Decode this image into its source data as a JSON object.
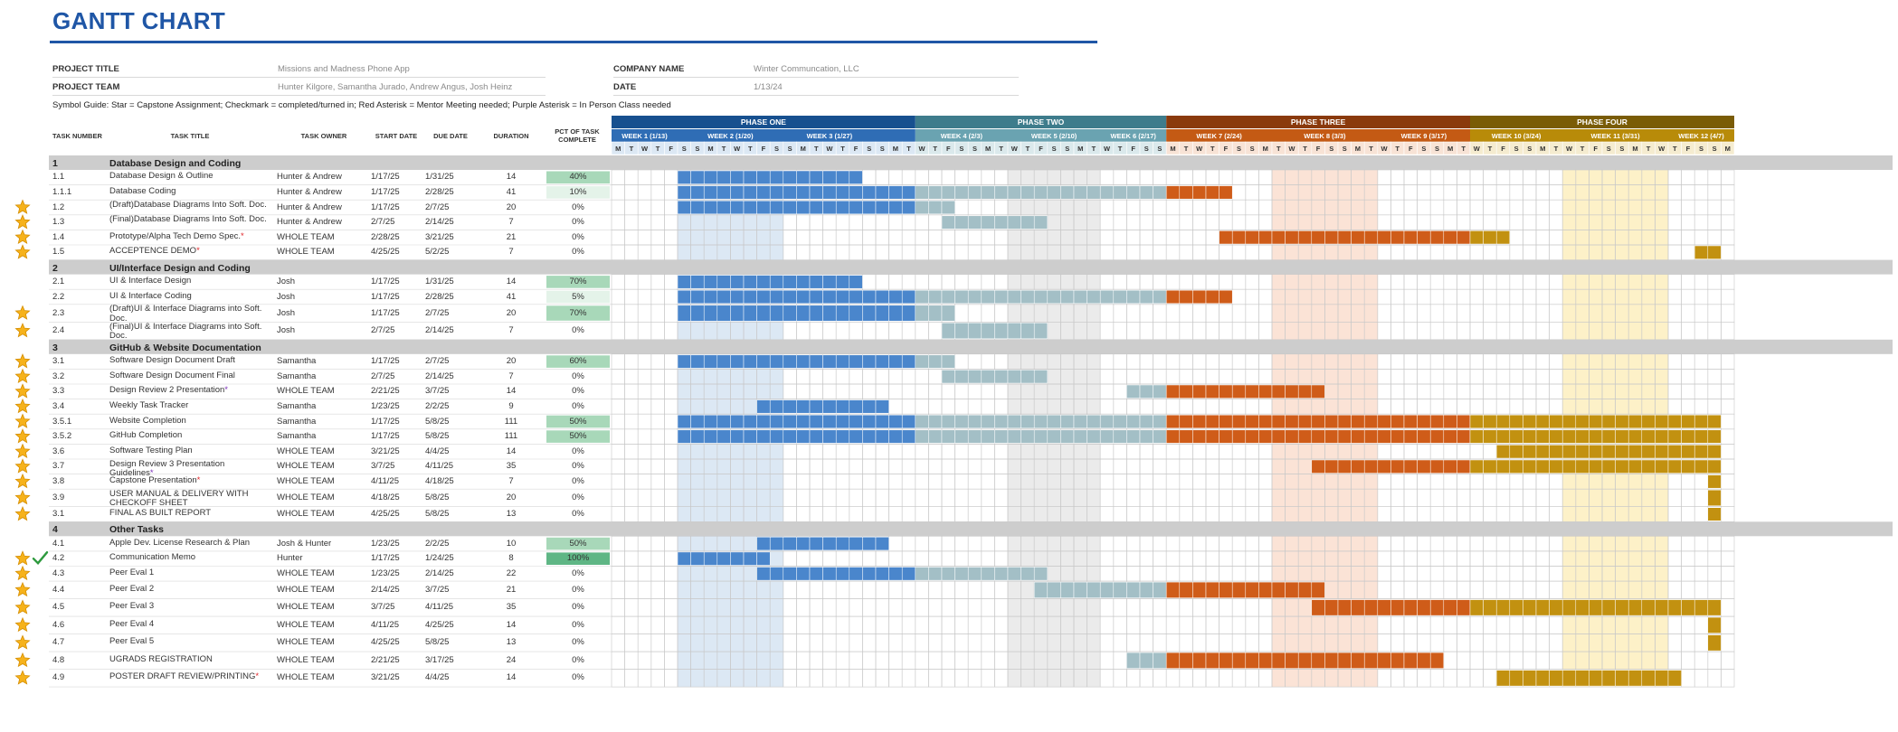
{
  "title": "GANTT CHART",
  "info": {
    "project_title_label": "PROJECT TITLE",
    "project_title": "Missions and Madness Phone App",
    "project_team_label": "PROJECT TEAM",
    "project_team": "Hunter Kilgore, Samantha Jurado, Andrew Angus, Josh Heinz",
    "company_name_label": "COMPANY NAME",
    "company_name": "Winter Communcation, LLC",
    "date_label": "DATE",
    "date": "1/13/24"
  },
  "symbol_guide": "Symbol Guide: Star = Capstone Assignment; Checkmark = completed/turned in; Red Asterisk = Mentor Meeting needed; Purple Asterisk = In Person Class needed",
  "columns": {
    "task_number": "TASK NUMBER",
    "task_title": "TASK TITLE",
    "task_owner": "TASK OWNER",
    "start_date": "START DATE",
    "due_date": "DUE DATE",
    "duration": "DURATION",
    "pct_complete": "PCT OF TASK COMPLETE"
  },
  "weekday_letters": [
    "M",
    "T",
    "W",
    "T",
    "F",
    "S",
    "S"
  ],
  "phases": [
    {
      "name": "PHASE ONE",
      "color": "#17508f",
      "week_color": "#2f6db5",
      "bar_color": "#4a86cc",
      "weeks": [
        "WEEK 1 (1/13)",
        "WEEK 2 (1/20)",
        "WEEK 3 (1/27)"
      ]
    },
    {
      "name": "PHASE TWO",
      "color": "#3e7c8c",
      "week_color": "#6aa3b1",
      "bar_color": "#a3bfc6",
      "weeks": [
        "WEEK 4 (2/3)",
        "WEEK 5 (2/10)",
        "WEEK 6 (2/17)"
      ]
    },
    {
      "name": "PHASE THREE",
      "color": "#8a3a0c",
      "week_color": "#c45a14",
      "bar_color": "#cf5c19",
      "weeks": [
        "WEEK 7 (2/24)",
        "WEEK 8 (3/3)",
        "WEEK 9 (3/17)"
      ]
    },
    {
      "name": "PHASE FOUR",
      "color": "#7a5c06",
      "week_color": "#b88b09",
      "bar_color": "#c29110",
      "weeks": [
        "WEEK 10 (3/24)",
        "WEEK 11 (3/31)",
        "WEEK 12 (4/7)"
      ]
    }
  ],
  "rows": [
    {
      "type": "section",
      "num": "1",
      "title": "Database Design and Coding"
    },
    {
      "type": "task",
      "num": "1.1",
      "title": "Database Design & Outline",
      "owner": "Hunter & Andrew",
      "start": "1/17/25",
      "due": "1/31/25",
      "duration": "14",
      "pct": "40%",
      "pct_value": 40,
      "star": false,
      "check": false,
      "asterisk": "",
      "bar_start_day": 5,
      "bar_end_day": 19
    },
    {
      "type": "task",
      "num": "1.1.1",
      "title": "Database Coding",
      "owner": "Hunter & Andrew",
      "start": "1/17/25",
      "due": "2/28/25",
      "duration": "41",
      "pct": "10%",
      "pct_value": 10,
      "star": false,
      "check": false,
      "asterisk": "",
      "bar_start_day": 5,
      "bar_end_day": 47
    },
    {
      "type": "task",
      "num": "1.2",
      "title": "(Draft)Database Diagrams Into Soft. Doc.",
      "owner": "Hunter & Andrew",
      "start": "1/17/25",
      "due": "2/7/25",
      "duration": "20",
      "pct": "0%",
      "pct_value": 0,
      "star": true,
      "check": false,
      "asterisk": "",
      "bar_start_day": 5,
      "bar_end_day": 26
    },
    {
      "type": "task",
      "num": "1.3",
      "title": "(Final)Database Diagrams Into Soft. Doc.",
      "owner": "Hunter & Andrew",
      "start": "2/7/25",
      "due": "2/14/25",
      "duration": "7",
      "pct": "0%",
      "pct_value": 0,
      "star": true,
      "check": false,
      "asterisk": "",
      "bar_start_day": 25,
      "bar_end_day": 33
    },
    {
      "type": "task",
      "num": "1.4",
      "title": "Prototype/Alpha Tech Demo Spec.",
      "owner": "WHOLE TEAM",
      "start": "2/28/25",
      "due": "3/21/25",
      "duration": "21",
      "pct": "0%",
      "pct_value": 0,
      "star": true,
      "check": false,
      "asterisk": "red",
      "bar_start_day": 46,
      "bar_end_day": 68
    },
    {
      "type": "task",
      "num": "1.5",
      "title": "ACCEPTENCE DEMO",
      "owner": "WHOLE TEAM",
      "start": "4/25/25",
      "due": "5/2/25",
      "duration": "7",
      "pct": "0%",
      "pct_value": 0,
      "star": true,
      "check": false,
      "asterisk": "red",
      "bar_start_day": 82,
      "bar_end_day": 84
    },
    {
      "type": "section",
      "num": "2",
      "title": "UI/Interface Design and Coding"
    },
    {
      "type": "task",
      "num": "2.1",
      "title": "UI & Interface Design",
      "owner": "Josh",
      "start": "1/17/25",
      "due": "1/31/25",
      "duration": "14",
      "pct": "70%",
      "pct_value": 70,
      "star": false,
      "check": false,
      "asterisk": "",
      "bar_start_day": 5,
      "bar_end_day": 19
    },
    {
      "type": "task",
      "num": "2.2",
      "title": "UI & Interface Coding",
      "owner": "Josh",
      "start": "1/17/25",
      "due": "2/28/25",
      "duration": "41",
      "pct": "5%",
      "pct_value": 5,
      "star": false,
      "check": false,
      "asterisk": "",
      "bar_start_day": 5,
      "bar_end_day": 47
    },
    {
      "type": "task",
      "num": "2.3",
      "title": "(Draft)UI & Interface Diagrams into Soft. Doc.",
      "owner": "Josh",
      "start": "1/17/25",
      "due": "2/7/25",
      "duration": "20",
      "pct": "70%",
      "pct_value": 70,
      "star": true,
      "check": false,
      "asterisk": "",
      "bar_start_day": 5,
      "bar_end_day": 26,
      "tall": true
    },
    {
      "type": "task",
      "num": "2.4",
      "title": "(Final)UI & Interface Diagrams into Soft. Doc.",
      "owner": "Josh",
      "start": "2/7/25",
      "due": "2/14/25",
      "duration": "7",
      "pct": "0%",
      "pct_value": 0,
      "star": true,
      "check": false,
      "asterisk": "",
      "bar_start_day": 25,
      "bar_end_day": 33,
      "tall": true
    },
    {
      "type": "section",
      "num": "3",
      "title": "GitHub & Website Documentation"
    },
    {
      "type": "task",
      "num": "3.1",
      "title": "Software Design Document Draft",
      "owner": "Samantha",
      "start": "1/17/25",
      "due": "2/7/25",
      "duration": "20",
      "pct": "60%",
      "pct_value": 60,
      "star": true,
      "check": false,
      "asterisk": "",
      "bar_start_day": 5,
      "bar_end_day": 26
    },
    {
      "type": "task",
      "num": "3.2",
      "title": "Software Design Document Final",
      "owner": "Samantha",
      "start": "2/7/25",
      "due": "2/14/25",
      "duration": "7",
      "pct": "0%",
      "pct_value": 0,
      "star": true,
      "check": false,
      "asterisk": "",
      "bar_start_day": 25,
      "bar_end_day": 33
    },
    {
      "type": "task",
      "num": "3.3",
      "title": "Design Review 2 Presentation",
      "owner": "WHOLE TEAM",
      "start": "2/21/25",
      "due": "3/7/25",
      "duration": "14",
      "pct": "0%",
      "pct_value": 0,
      "star": true,
      "check": false,
      "asterisk": "purple",
      "bar_start_day": 39,
      "bar_end_day": 54
    },
    {
      "type": "task",
      "num": "3.4",
      "title": "Weekly Task Tracker",
      "owner": "Samantha",
      "start": "1/23/25",
      "due": "2/2/25",
      "duration": "9",
      "pct": "0%",
      "pct_value": 0,
      "star": true,
      "check": false,
      "asterisk": "",
      "bar_start_day": 11,
      "bar_end_day": 21
    },
    {
      "type": "task",
      "num": "3.5.1",
      "title": "Website Completion",
      "owner": "Samantha",
      "start": "1/17/25",
      "due": "5/8/25",
      "duration": "111",
      "pct": "50%",
      "pct_value": 50,
      "star": true,
      "check": false,
      "asterisk": "",
      "bar_start_day": 5,
      "bar_end_day": 84
    },
    {
      "type": "task",
      "num": "3.5.2",
      "title": "GitHub Completion",
      "owner": "Samantha",
      "start": "1/17/25",
      "due": "5/8/25",
      "duration": "111",
      "pct": "50%",
      "pct_value": 50,
      "star": true,
      "check": false,
      "asterisk": "",
      "bar_start_day": 5,
      "bar_end_day": 84
    },
    {
      "type": "task",
      "num": "3.6",
      "title": "Software Testing Plan",
      "owner": "WHOLE TEAM",
      "start": "3/21/25",
      "due": "4/4/25",
      "duration": "14",
      "pct": "0%",
      "pct_value": 0,
      "star": true,
      "check": false,
      "asterisk": "",
      "bar_start_day": 67,
      "bar_end_day": 84
    },
    {
      "type": "task",
      "num": "3.7",
      "title": "Design Review 3 Presentation Guidelines",
      "owner": "WHOLE TEAM",
      "start": "3/7/25",
      "due": "4/11/25",
      "duration": "35",
      "pct": "0%",
      "pct_value": 0,
      "star": true,
      "check": false,
      "asterisk": "purple",
      "bar_start_day": 53,
      "bar_end_day": 84
    },
    {
      "type": "task",
      "num": "3.8",
      "title": "Capstone Presentation",
      "owner": "WHOLE TEAM",
      "start": "4/11/25",
      "due": "4/18/25",
      "duration": "7",
      "pct": "0%",
      "pct_value": 0,
      "star": true,
      "check": false,
      "asterisk": "red",
      "bar_start_day": 83,
      "bar_end_day": 84
    },
    {
      "type": "task",
      "num": "3.9",
      "title": "USER MANUAL & DELIVERY WITH CHECKOFF SHEET",
      "owner": "WHOLE TEAM",
      "start": "4/18/25",
      "due": "5/8/25",
      "duration": "20",
      "pct": "0%",
      "pct_value": 0,
      "star": true,
      "check": false,
      "asterisk": "",
      "bar_start_day": 83,
      "bar_end_day": 84,
      "tall": true
    },
    {
      "type": "task",
      "num": "3.1",
      "title": "FINAL AS BUILT REPORT",
      "owner": "WHOLE TEAM",
      "start": "4/25/25",
      "due": "5/8/25",
      "duration": "13",
      "pct": "0%",
      "pct_value": 0,
      "star": true,
      "check": false,
      "asterisk": "",
      "bar_start_day": 83,
      "bar_end_day": 84
    },
    {
      "type": "section",
      "num": "4",
      "title": "Other Tasks"
    },
    {
      "type": "task",
      "num": "4.1",
      "title": "Apple Dev. License Research & Plan",
      "owner": "Josh & Hunter",
      "start": "1/23/25",
      "due": "2/2/25",
      "duration": "10",
      "pct": "50%",
      "pct_value": 50,
      "star": false,
      "check": false,
      "asterisk": "",
      "bar_start_day": 11,
      "bar_end_day": 21
    },
    {
      "type": "task",
      "num": "4.2",
      "title": "Communication Memo",
      "owner": "Hunter",
      "start": "1/17/25",
      "due": "1/24/25",
      "duration": "8",
      "pct": "100%",
      "pct_value": 100,
      "star": true,
      "check": true,
      "asterisk": "",
      "bar_start_day": 5,
      "bar_end_day": 12
    },
    {
      "type": "task",
      "num": "4.3",
      "title": "Peer Eval 1",
      "owner": "WHOLE TEAM",
      "start": "1/23/25",
      "due": "2/14/25",
      "duration": "22",
      "pct": "0%",
      "pct_value": 0,
      "star": true,
      "check": false,
      "asterisk": "",
      "bar_start_day": 11,
      "bar_end_day": 33
    },
    {
      "type": "task",
      "num": "4.4",
      "title": "Peer Eval 2",
      "owner": "WHOLE TEAM",
      "start": "2/14/25",
      "due": "3/7/25",
      "duration": "21",
      "pct": "0%",
      "pct_value": 0,
      "star": true,
      "check": false,
      "asterisk": "",
      "bar_start_day": 32,
      "bar_end_day": 54,
      "tall": true
    },
    {
      "type": "task",
      "num": "4.5",
      "title": "Peer Eval 3",
      "owner": "WHOLE TEAM",
      "start": "3/7/25",
      "due": "4/11/25",
      "duration": "35",
      "pct": "0%",
      "pct_value": 0,
      "star": true,
      "check": false,
      "asterisk": "",
      "bar_start_day": 53,
      "bar_end_day": 84,
      "tall": true
    },
    {
      "type": "task",
      "num": "4.6",
      "title": "Peer Eval 4",
      "owner": "WHOLE TEAM",
      "start": "4/11/25",
      "due": "4/25/25",
      "duration": "14",
      "pct": "0%",
      "pct_value": 0,
      "star": true,
      "check": false,
      "asterisk": "",
      "bar_start_day": 83,
      "bar_end_day": 84,
      "tall": true
    },
    {
      "type": "task",
      "num": "4.7",
      "title": "Peer Eval 5",
      "owner": "WHOLE TEAM",
      "start": "4/25/25",
      "due": "5/8/25",
      "duration": "13",
      "pct": "0%",
      "pct_value": 0,
      "star": true,
      "check": false,
      "asterisk": "",
      "bar_start_day": 83,
      "bar_end_day": 84,
      "tall": true
    },
    {
      "type": "task",
      "num": "4.8",
      "title": "UGRADS REGISTRATION",
      "owner": "WHOLE TEAM",
      "start": "2/21/25",
      "due": "3/17/25",
      "duration": "24",
      "pct": "0%",
      "pct_value": 0,
      "star": true,
      "check": false,
      "asterisk": "",
      "bar_start_day": 39,
      "bar_end_day": 63,
      "tall": true
    },
    {
      "type": "task",
      "num": "4.9",
      "title": "POSTER DRAFT REVIEW/PRINTING",
      "owner": "WHOLE TEAM",
      "start": "3/21/25",
      "due": "4/4/25",
      "duration": "14",
      "pct": "0%",
      "pct_value": 0,
      "star": true,
      "check": false,
      "asterisk": "red",
      "bar_start_day": 67,
      "bar_end_day": 81,
      "tall": true
    }
  ]
}
